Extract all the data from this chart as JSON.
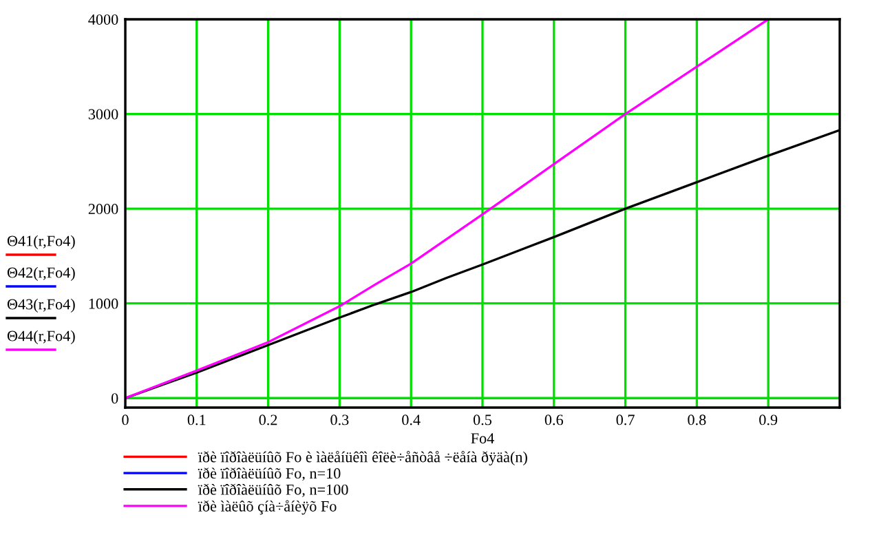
{
  "chart_data": {
    "type": "line",
    "xlabel": "Fo4",
    "x": [
      0,
      0.1,
      0.2,
      0.3,
      0.35,
      0.4,
      0.45,
      0.5,
      0.6,
      0.7,
      0.8,
      0.9,
      1.0
    ],
    "series": [
      {
        "name": "ïðè ïîðîàëüíûõ Fo è ìàëåíüêîì êîëè÷åñòâå ÷ëåíà ðÿäà(n)",
        "color": "#ff0000",
        "values": [
          null,
          null,
          null,
          null,
          null,
          null,
          null,
          null,
          null,
          null,
          null,
          null,
          null
        ]
      },
      {
        "name": "ïðè ïîðîàëüíûõ Fo, n=10",
        "color": "#0000ff",
        "values": [
          null,
          null,
          null,
          null,
          null,
          null,
          null,
          null,
          null,
          null,
          null,
          null,
          null
        ]
      },
      {
        "name": "ïðè ïîðîàëüíûõ Fo, n=100",
        "color": "#000000",
        "values": [
          0,
          270,
          560,
          850,
          990,
          1120,
          1270,
          1410,
          1700,
          2000,
          2280,
          2560,
          2830
        ]
      },
      {
        "name": "ïðè ìàëûõ çíà÷åíèÿõ Fo",
        "color": "#ff00ff",
        "values": [
          0,
          290,
          590,
          970,
          1200,
          1420,
          1680,
          1940,
          2470,
          3000,
          3500,
          4000,
          null
        ]
      }
    ],
    "annotations": [
      "Θ41(r,Fo4)",
      "Θ42(r,Fo4)",
      "Θ43(r,Fo4)",
      "Θ44(r,Fo4)"
    ],
    "xlim": [
      0,
      1.0
    ],
    "ylim": [
      -100,
      4000
    ],
    "xticks": [
      0,
      0.1,
      0.2,
      0.3,
      0.4,
      0.5,
      0.6,
      0.7,
      0.8,
      0.9
    ],
    "yticks": [
      0,
      1000,
      2000,
      3000,
      4000
    ],
    "grid": true,
    "legend": "bottom"
  }
}
